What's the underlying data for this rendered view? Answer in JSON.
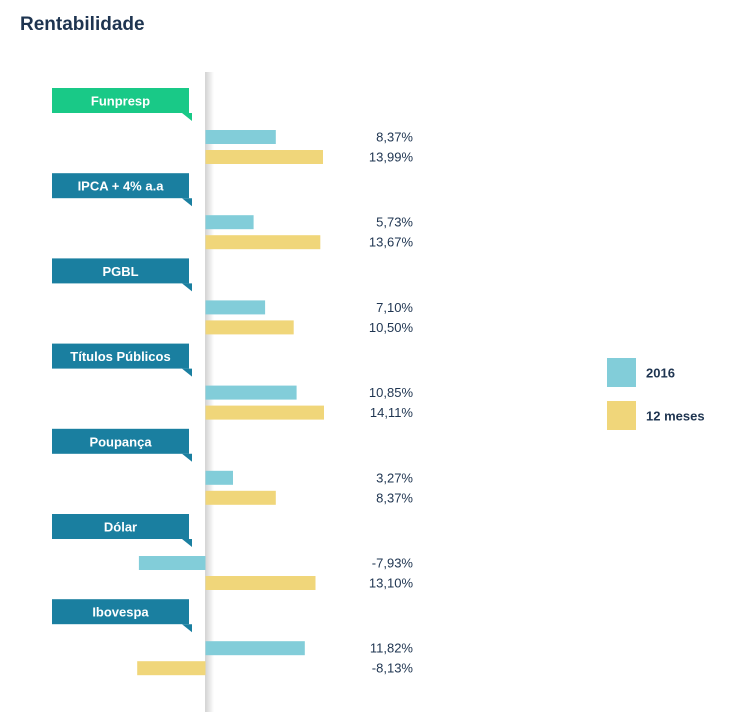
{
  "chart_data": {
    "type": "bar",
    "orientation": "horizontal",
    "title": "Rentabilidade",
    "categories": [
      "Funpresp",
      "IPCA + 4% a.a",
      "PGBL",
      "Títulos Públicos",
      "Poupança",
      "Dólar",
      "Ibovespa"
    ],
    "series": [
      {
        "name": "2016",
        "color": "#82cdd9",
        "values": [
          8.37,
          5.73,
          7.1,
          10.85,
          3.27,
          -7.93,
          11.82
        ],
        "labels": [
          "8,37%",
          "5,73%",
          "7,10%",
          "10,85%",
          "3,27%",
          "-7,93%",
          "11,82%"
        ]
      },
      {
        "name": "12 meses",
        "color": "#f0d67a",
        "values": [
          13.99,
          13.67,
          10.5,
          14.11,
          8.37,
          13.1,
          -8.13
        ],
        "labels": [
          "13,99%",
          "13,67%",
          "10,50%",
          "14,11%",
          "8,37%",
          "13,10%",
          "-8,13%"
        ]
      }
    ],
    "category_colors": [
      "#19c987",
      "#1a7fa0",
      "#1a7fa0",
      "#1a7fa0",
      "#1a7fa0",
      "#1a7fa0",
      "#1a7fa0"
    ],
    "legend_position": "right",
    "grid": false
  }
}
